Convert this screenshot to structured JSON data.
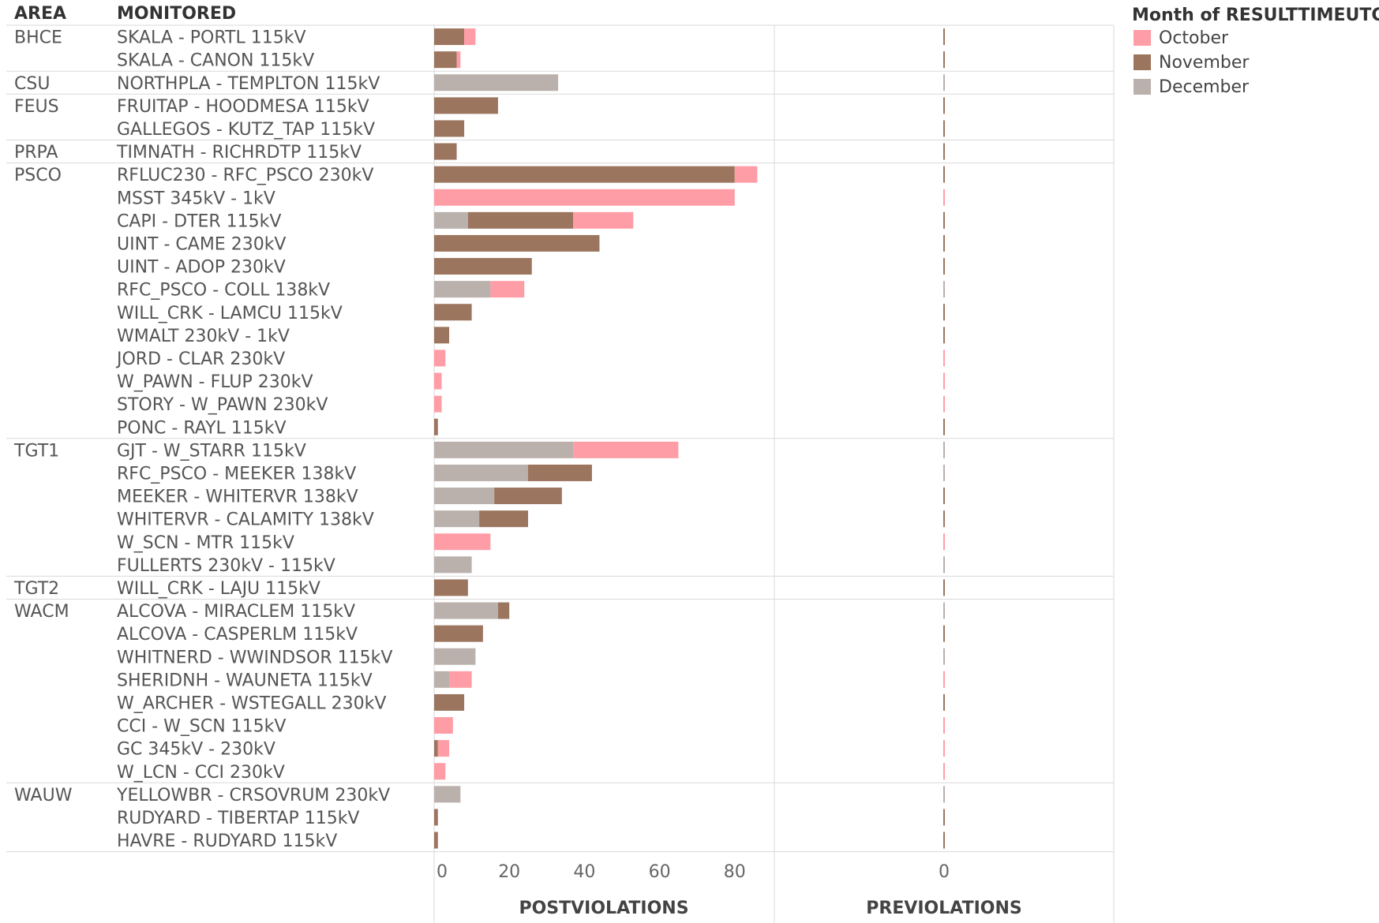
{
  "headers": {
    "area": "AREA",
    "monitored": "MONITORED"
  },
  "legend": {
    "title": "Month of RESULTTIMEUTC",
    "items": [
      {
        "label": "October",
        "color": "#ff9da7"
      },
      {
        "label": "November",
        "color": "#9c755f"
      },
      {
        "label": "December",
        "color": "#bab0ac"
      }
    ]
  },
  "chart_data": {
    "type": "bar",
    "orientation": "horizontal",
    "stacked": true,
    "stack_order": [
      "December",
      "November",
      "October"
    ],
    "panels": [
      {
        "name": "POSTVIOLATIONS",
        "ticks": [
          0,
          20,
          40,
          60,
          80
        ],
        "xlim": [
          0,
          90
        ]
      },
      {
        "name": "PREVIOLATIONS",
        "ticks": [
          0
        ]
      }
    ],
    "rows": [
      {
        "area": "BHCE",
        "monitored": "SKALA  - PORTL 115kV",
        "december": 0,
        "november": 8,
        "october": 3
      },
      {
        "area": "",
        "monitored": "SKALA  - CANON 115kV",
        "december": 0,
        "november": 6,
        "october": 1
      },
      {
        "area": "CSU",
        "monitored": "NORTHPLA  - TEMPLTON 115kV",
        "december": 33,
        "november": 0,
        "october": 0
      },
      {
        "area": "FEUS",
        "monitored": "FRUITAP  - HOODMESA 115kV",
        "december": 0,
        "november": 17,
        "october": 0
      },
      {
        "area": "",
        "monitored": "GALLEGOS  - KUTZ_TAP 115kV",
        "december": 0,
        "november": 8,
        "october": 0
      },
      {
        "area": "PRPA",
        "monitored": "TIMNATH  - RICHRDTP 115kV",
        "december": 0,
        "november": 6,
        "october": 0
      },
      {
        "area": "PSCO",
        "monitored": "RFLUC230  - RFC_PSCO 230kV",
        "december": 0,
        "november": 80,
        "october": 6
      },
      {
        "area": "",
        "monitored": "MSST 345kV - 1kV",
        "december": 0,
        "november": 0,
        "october": 80
      },
      {
        "area": "",
        "monitored": "CAPI  - DTER 115kV",
        "december": 9,
        "november": 28,
        "october": 16
      },
      {
        "area": "",
        "monitored": "UINT  - CAME 230kV",
        "december": 0,
        "november": 44,
        "october": 0
      },
      {
        "area": "",
        "monitored": "UINT  - ADOP 230kV",
        "december": 0,
        "november": 26,
        "october": 0
      },
      {
        "area": "",
        "monitored": "RFC_PSCO  - COLL 138kV",
        "december": 15,
        "november": 0,
        "october": 9
      },
      {
        "area": "",
        "monitored": "WILL_CRK  - LAMCU 115kV",
        "december": 0,
        "november": 10,
        "october": 0
      },
      {
        "area": "",
        "monitored": "WMALT 230kV - 1kV",
        "december": 0,
        "november": 4,
        "october": 0
      },
      {
        "area": "",
        "monitored": "JORD  - CLAR 230kV",
        "december": 0,
        "november": 0,
        "october": 3
      },
      {
        "area": "",
        "monitored": "W_PAWN  - FLUP 230kV",
        "december": 0,
        "november": 0,
        "october": 2
      },
      {
        "area": "",
        "monitored": "STORY  - W_PAWN 230kV",
        "december": 0,
        "november": 0,
        "october": 2
      },
      {
        "area": "",
        "monitored": "PONC  - RAYL 115kV",
        "december": 0,
        "november": 1,
        "october": 0
      },
      {
        "area": "TGT1",
        "monitored": "GJT  - W_STARR 115kV",
        "december": 37,
        "november": 0,
        "october": 28
      },
      {
        "area": "",
        "monitored": "RFC_PSCO  - MEEKER 138kV",
        "december": 25,
        "november": 17,
        "october": 0
      },
      {
        "area": "",
        "monitored": "MEEKER  - WHITERVR 138kV",
        "december": 16,
        "november": 18,
        "october": 0
      },
      {
        "area": "",
        "monitored": "WHITERVR  - CALAMITY 138kV",
        "december": 12,
        "november": 13,
        "october": 0
      },
      {
        "area": "",
        "monitored": "W_SCN  - MTR 115kV",
        "december": 0,
        "november": 0,
        "october": 15
      },
      {
        "area": "",
        "monitored": "FULLERTS 230kV - 115kV",
        "december": 10,
        "november": 0,
        "october": 0
      },
      {
        "area": "TGT2",
        "monitored": "WILL_CRK  - LAJU 115kV",
        "december": 0,
        "november": 9,
        "october": 0
      },
      {
        "area": "WACM",
        "monitored": "ALCOVA  - MIRACLEM 115kV",
        "december": 17,
        "november": 3,
        "october": 0
      },
      {
        "area": "",
        "monitored": "ALCOVA  - CASPERLM 115kV",
        "december": 0,
        "november": 13,
        "october": 0
      },
      {
        "area": "",
        "monitored": "WHITNERD  - WWINDSOR 115kV",
        "december": 11,
        "november": 0,
        "october": 0
      },
      {
        "area": "",
        "monitored": "SHERIDNH  - WAUNETA 115kV",
        "december": 4,
        "november": 0,
        "october": 6
      },
      {
        "area": "",
        "monitored": "W_ARCHER  - WSTEGALL 230kV",
        "december": 0,
        "november": 8,
        "october": 0
      },
      {
        "area": "",
        "monitored": "CCI  - W_SCN 115kV",
        "december": 0,
        "november": 0,
        "october": 5
      },
      {
        "area": "",
        "monitored": "GC 345kV - 230kV",
        "december": 0,
        "november": 1,
        "october": 3
      },
      {
        "area": "",
        "monitored": "W_LCN  - CCI 230kV",
        "december": 0,
        "november": 0,
        "october": 3
      },
      {
        "area": "WAUW",
        "monitored": "YELLOWBR  - CRSOVRUM 230kV",
        "december": 7,
        "november": 0,
        "october": 0
      },
      {
        "area": "",
        "monitored": "RUDYARD  - TIBERTAP 115kV",
        "december": 0,
        "november": 1,
        "october": 0
      },
      {
        "area": "",
        "monitored": "HAVRE  - RUDYARD 115kV",
        "december": 0,
        "november": 1,
        "october": 0
      }
    ]
  }
}
